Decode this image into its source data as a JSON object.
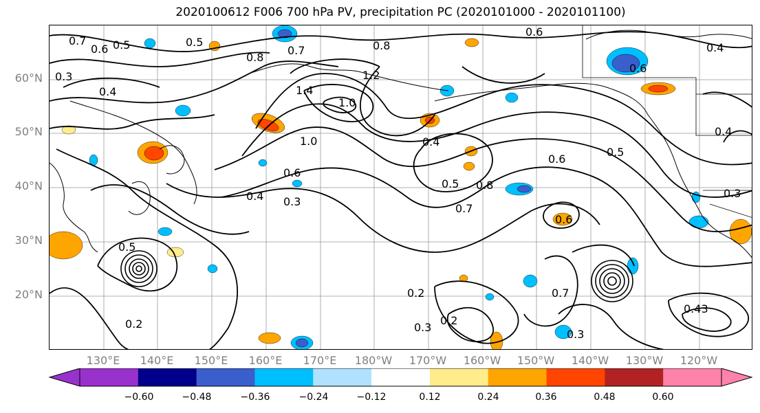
{
  "title": "2020100612 F006 700 hPa PV, precipitation PC (2020101000 - 2020101100)",
  "latitude_labels": [
    "60°N",
    "50°N",
    "40°N",
    "30°N",
    "20°N"
  ],
  "longitude_labels": [
    "130°E",
    "140°E",
    "150°E",
    "160°E",
    "170°E",
    "180°W",
    "170°W",
    "160°W",
    "150°W",
    "140°W",
    "130°W",
    "120°W"
  ],
  "contour_labels": [
    "0.7",
    "0.6",
    "0.5",
    "0.3",
    "0.4",
    "0.5",
    "0.8",
    "0.7",
    "0.8",
    "1.2",
    "1.4",
    "1.0",
    "1.0",
    "0.4",
    "0.5",
    "0.7",
    "0.8",
    "0.6",
    "0.6",
    "0.5",
    "0.4",
    "0.3",
    "0.2",
    "0.3",
    "0.2",
    "0.3",
    "0.43",
    "0.6",
    "0.4",
    "0.6",
    "0.7",
    "0.4",
    "0.3",
    "0.6",
    "0.5",
    "0.2"
  ],
  "colorbar": {
    "ticks": [
      "−0.60",
      "−0.48",
      "−0.36",
      "−0.24",
      "−0.12",
      "0.12",
      "0.24",
      "0.36",
      "0.48",
      "0.60"
    ],
    "colors": [
      "#9932cc",
      "#00008b",
      "#3a5fcd",
      "#00bfff",
      "#b0e2ff",
      "#ffffff",
      "#ffec8b",
      "#ffa500",
      "#ff4500",
      "#b22222",
      "#ff82ab"
    ]
  }
}
